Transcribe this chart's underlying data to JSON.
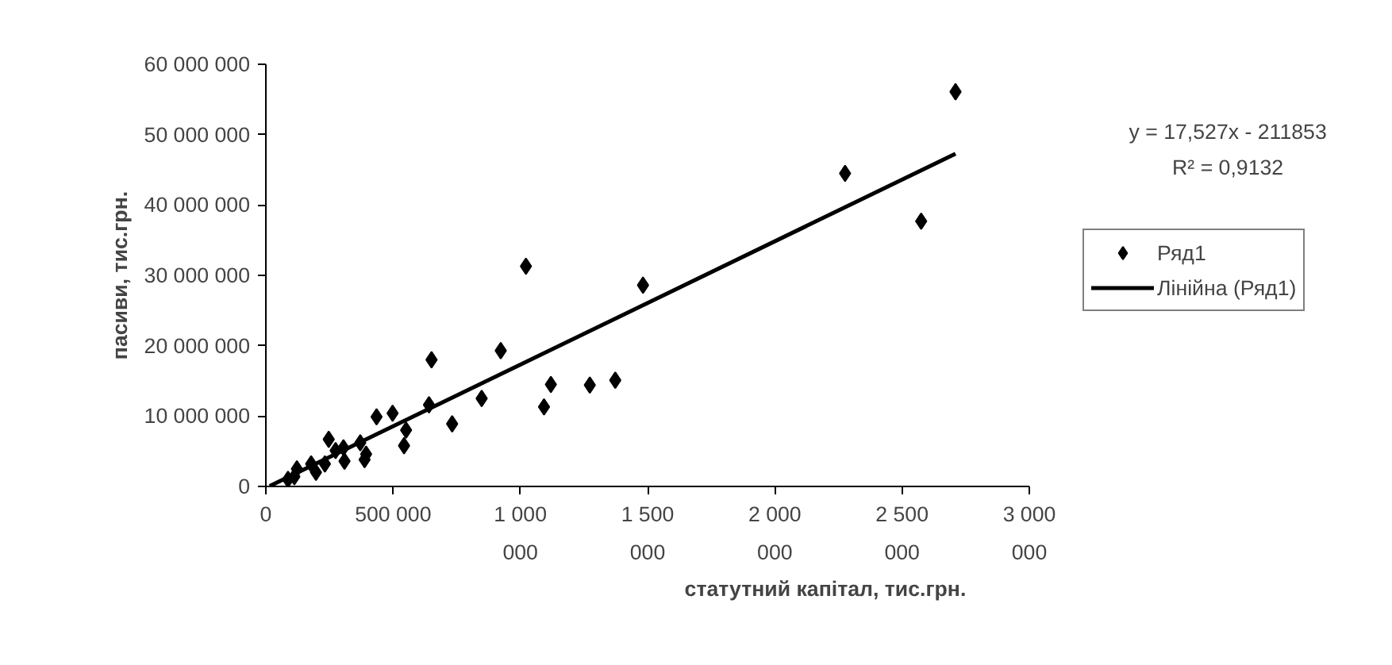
{
  "chart_data": {
    "type": "scatter",
    "xlabel": "статутний капітал, тис.грн.",
    "ylabel": "пасиви, тис.грн.",
    "xlim": [
      0,
      3000000
    ],
    "ylim": [
      0,
      60000000
    ],
    "xticks": [
      0,
      {
        "value": 500000,
        "label": "500 000"
      },
      {
        "value": 1000000,
        "label": "1 000 000"
      },
      {
        "value": 1500000,
        "label": "1 500 000"
      },
      {
        "value": 2000000,
        "label": "2 000 000"
      },
      {
        "value": 2500000,
        "label": "2 500 000"
      },
      {
        "value": 3000000,
        "label": "3 000 000"
      }
    ],
    "yticks": [
      0,
      {
        "value": 10000000,
        "label": "10 000 000"
      },
      {
        "value": 20000000,
        "label": "20 000 000"
      },
      {
        "value": 30000000,
        "label": "30 000 000"
      },
      {
        "value": 40000000,
        "label": "40 000 000"
      },
      {
        "value": 50000000,
        "label": "50 000 000"
      },
      {
        "value": 60000000,
        "label": "60 000 000"
      }
    ],
    "grid": false,
    "legend": "right",
    "marker": "diamond",
    "annotations": [
      "y = 17,527x - 211853",
      "R² = 0,9132"
    ],
    "series": [
      {
        "name": "Ряд1",
        "color": "#000000",
        "x": [
          2710000,
          2276000,
          2575000,
          1022000,
          1482000,
          923000,
          651000,
          1373000,
          1273000,
          1120000,
          1093000,
          848000,
          641000,
          732000,
          498000,
          435000,
          551000,
          543000,
          247000,
          371000,
          305000,
          274000,
          394000,
          388000,
          309000,
          232000,
          178000,
          197000,
          122000,
          112000,
          87000
        ],
        "values": [
          56100000,
          44500000,
          37700000,
          31300000,
          28600000,
          19300000,
          18000000,
          15100000,
          14400000,
          14500000,
          11300000,
          12500000,
          11600000,
          8900000,
          10400000,
          9900000,
          8000000,
          5800000,
          6700000,
          6200000,
          5500000,
          5100000,
          4600000,
          3800000,
          3600000,
          3200000,
          3200000,
          2000000,
          2500000,
          1400000,
          1000000
        ]
      },
      {
        "name": "Лінійна (Ряд1)",
        "type": "line",
        "color": "#000000",
        "line_style": "solid",
        "marker": "none",
        "x": [
          15000,
          2710000
        ],
        "values": [
          51000,
          47290000
        ]
      }
    ]
  }
}
